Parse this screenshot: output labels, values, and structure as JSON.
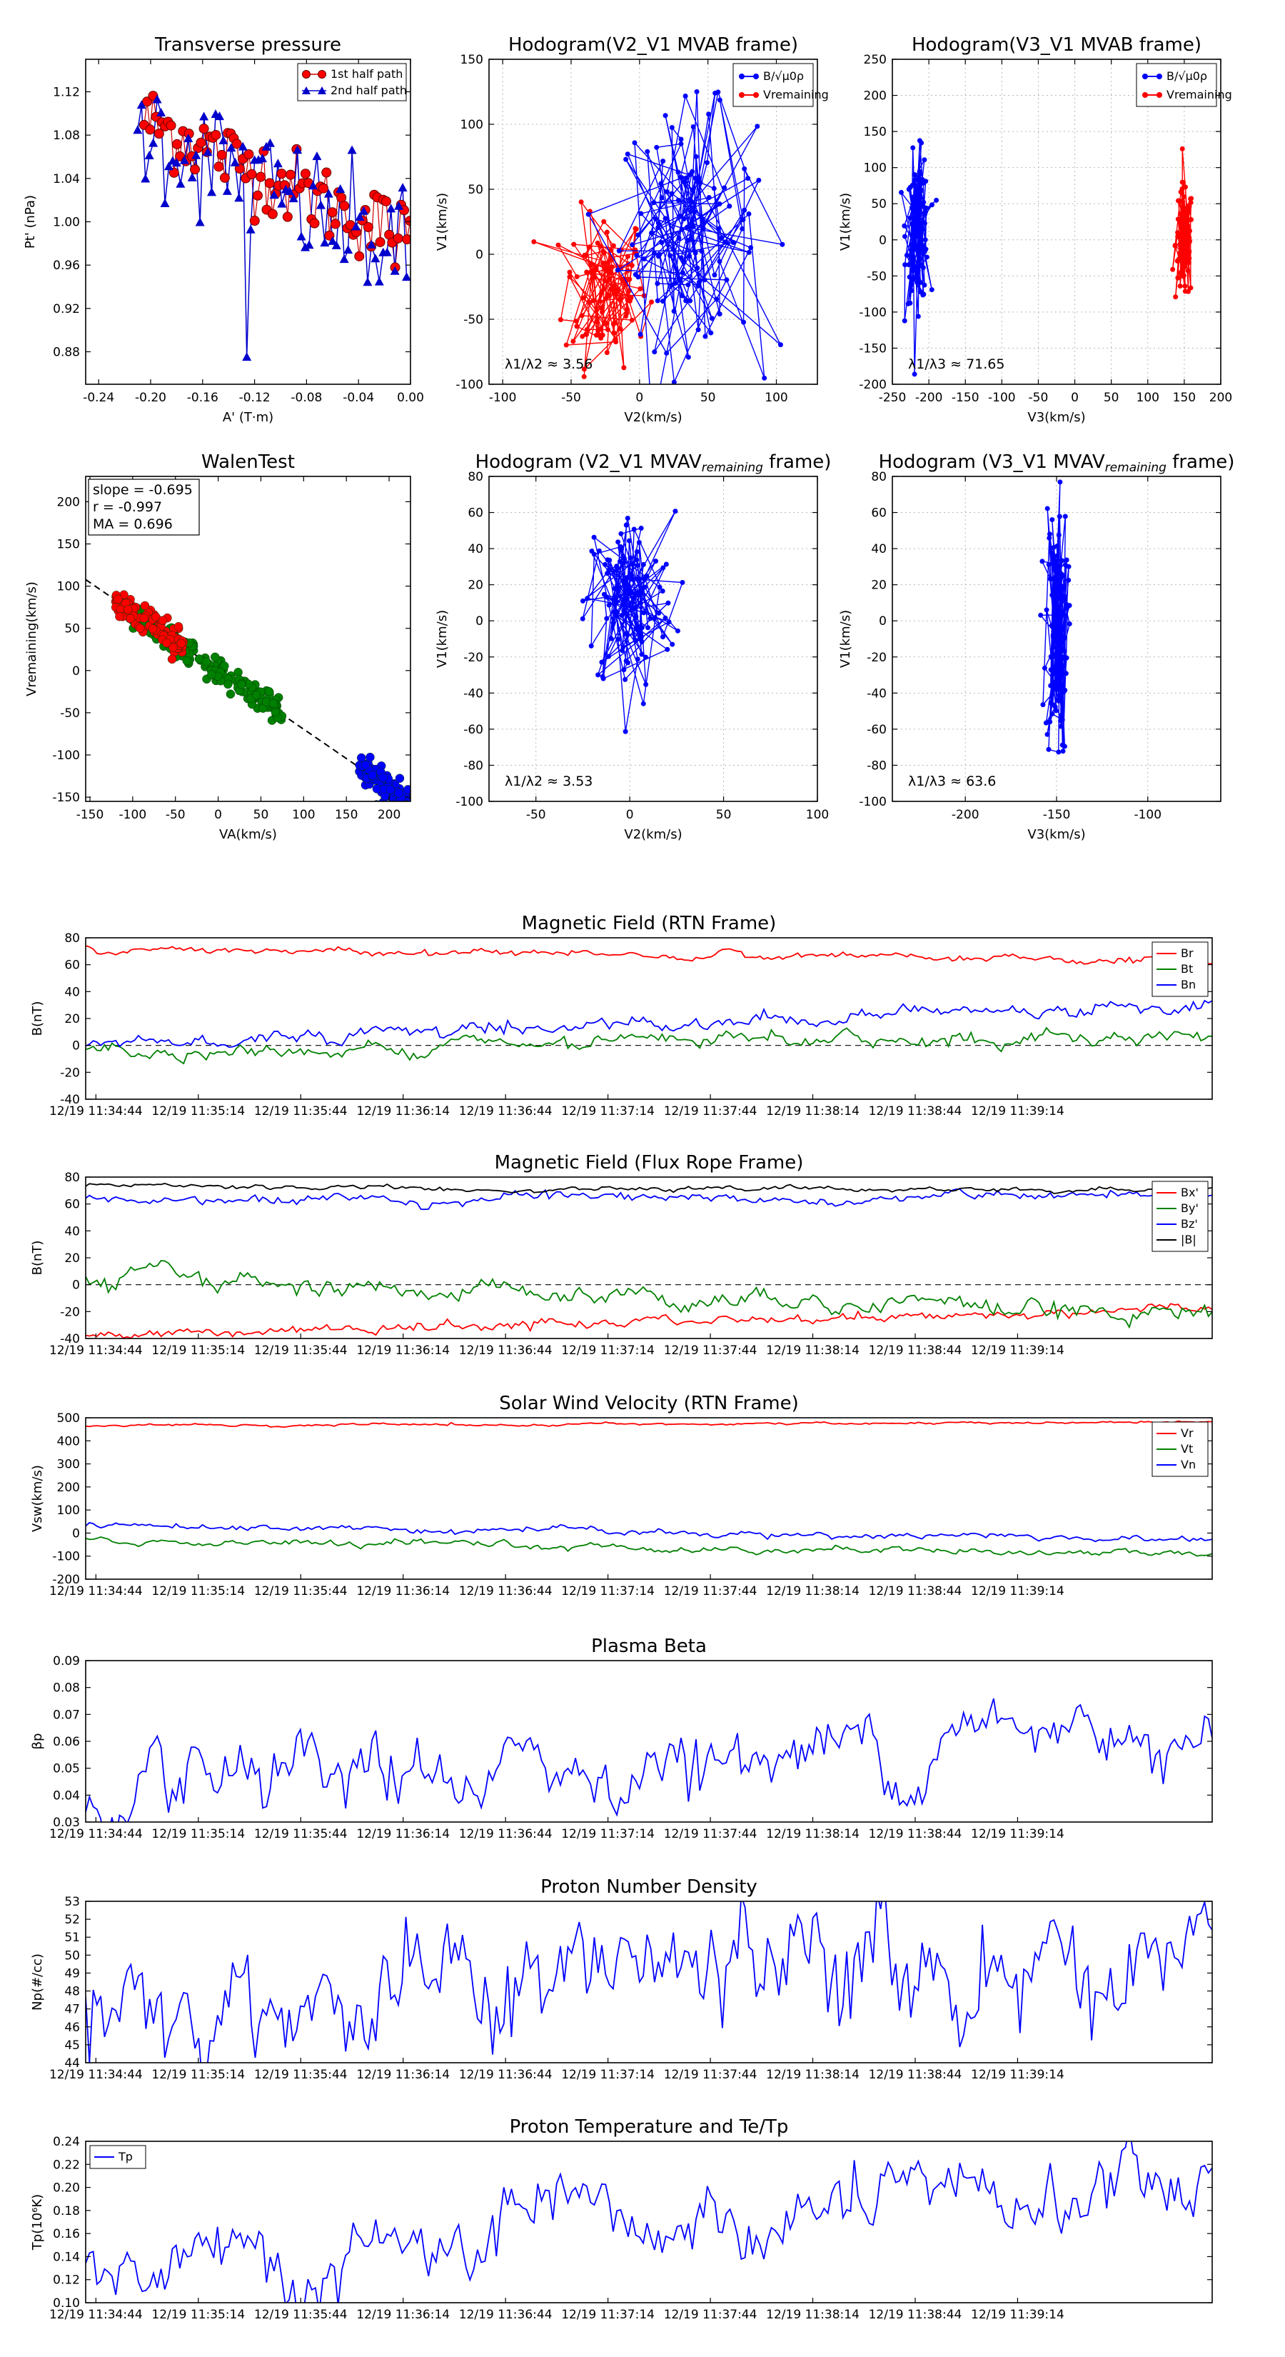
{
  "figure": {
    "subplot_titles": {
      "p1": "Transverse pressure",
      "p2": "Hodogram(V2_V1 MVAB frame)",
      "p3": "Hodogram(V3_V1 MVAB frame)",
      "p4": "WalenTest",
      "p5": "Hodogram (V2_V1 MVAV",
      "p5_sub": "remaining",
      "p5_end": " frame)",
      "p6": "Hodogram (V3_V1 MVAV",
      "p6_sub": "remaining",
      "p6_end": " frame)"
    }
  },
  "chart_data": [
    {
      "id": "p1",
      "type": "scatter",
      "title": "Transverse pressure",
      "xlabel": "A' (T·m)",
      "ylabel": "Pt' (nPa)",
      "xlim": [
        -0.25,
        0.0
      ],
      "ylim": [
        0.85,
        1.15
      ],
      "xticks": [
        -0.24,
        -0.2,
        -0.16,
        -0.12,
        -0.08,
        -0.04,
        0.0
      ],
      "xtick_labels": [
        "-0.24",
        "-0.20",
        "-0.16",
        "-0.12",
        "-0.08",
        "-0.04",
        "0.00"
      ],
      "yticks": [
        0.88,
        0.92,
        0.96,
        1.0,
        1.04,
        1.08,
        1.12
      ],
      "ytick_labels": [
        "0.88",
        "0.92",
        "0.96",
        "1.00",
        "1.04",
        "1.08",
        "1.12"
      ],
      "legend": [
        "1st half path",
        "2nd half path"
      ],
      "series_colors": [
        "#ff0000",
        "#0000cc"
      ]
    },
    {
      "id": "p2",
      "type": "line",
      "title": "Hodogram(V2_V1 MVAB frame)",
      "xlabel": "V2(km/s)",
      "ylabel": "V1(km/s)",
      "xlim": [
        -110,
        130
      ],
      "ylim": [
        -100,
        150
      ],
      "xticks": [
        -100,
        -50,
        0,
        50,
        100
      ],
      "yticks": [
        -100,
        -50,
        0,
        50,
        100,
        150
      ],
      "annotation": "λ1/λ2 ≈ 3.56",
      "legend": [
        "B/√μ0ρ",
        "Vremaining"
      ],
      "series_colors": [
        "#0000ff",
        "#ff0000"
      ],
      "blue": {
        "cx": 35,
        "cy": 20,
        "sx": 25,
        "sy": 45
      },
      "red": {
        "cx": -25,
        "cy": -25,
        "sx": 15,
        "sy": 30
      }
    },
    {
      "id": "p3",
      "type": "line",
      "title": "Hodogram(V3_V1 MVAB frame)",
      "xlabel": "V3(km/s)",
      "ylabel": "V1(km/s)",
      "xlim": [
        -250,
        200
      ],
      "ylim": [
        -200,
        250
      ],
      "xticks": [
        -250,
        -200,
        -150,
        -100,
        -50,
        0,
        50,
        100,
        150,
        200
      ],
      "yticks": [
        -200,
        -150,
        -100,
        -50,
        0,
        50,
        100,
        150,
        200,
        250
      ],
      "annotation": "λ1/λ3 ≈ 71.65",
      "legend": [
        "B/√μ0ρ",
        "Vremaining"
      ],
      "series_colors": [
        "#0000ff",
        "#ff0000"
      ],
      "blue": {
        "cx": -215,
        "cy": 15,
        "sx": 8,
        "sy": 50
      },
      "red": {
        "cx": 150,
        "cy": -5,
        "sx": 6,
        "sy": 40
      }
    },
    {
      "id": "p4",
      "type": "scatter",
      "title": "WalenTest",
      "xlabel": "VA(km/s)",
      "ylabel": "Vremaining(km/s)",
      "xlim": [
        -155,
        225
      ],
      "ylim": [
        -155,
        230
      ],
      "xticks": [
        -150,
        -100,
        -50,
        0,
        50,
        100,
        150,
        200
      ],
      "yticks": [
        -150,
        -100,
        -50,
        0,
        50,
        100,
        150,
        200
      ],
      "slope": -0.695,
      "r": -0.997,
      "MA": 0.696,
      "annotation_lines": [
        "slope = -0.695",
        "r = -0.997",
        "MA = 0.696"
      ]
    },
    {
      "id": "p5",
      "type": "line",
      "title": "Hodogram (V2_V1 MVAVremaining frame)",
      "xlabel": "V2(km/s)",
      "ylabel": "V1(km/s)",
      "xlim": [
        -75,
        100
      ],
      "ylim": [
        -100,
        80
      ],
      "xticks": [
        -50,
        0,
        50,
        100
      ],
      "yticks": [
        -100,
        -80,
        -60,
        -40,
        -20,
        0,
        20,
        40,
        60,
        80
      ],
      "annotation": "λ1/λ2 ≈ 3.53",
      "series_colors": [
        "#0000ff"
      ],
      "blue": {
        "cx": 0,
        "cy": 10,
        "sx": 12,
        "sy": 25
      }
    },
    {
      "id": "p6",
      "type": "line",
      "title": "Hodogram (V3_V1 MVAVremaining frame)",
      "xlabel": "V3(km/s)",
      "ylabel": "V1(km/s)",
      "xlim": [
        -240,
        -60
      ],
      "ylim": [
        -100,
        80
      ],
      "xticks": [
        -200,
        -150,
        -100
      ],
      "yticks": [
        -100,
        -80,
        -60,
        -40,
        -20,
        0,
        20,
        40,
        60,
        80
      ],
      "annotation": "λ1/λ3 ≈ 63.6",
      "series_colors": [
        "#0000ff"
      ],
      "blue": {
        "cx": -150,
        "cy": -5,
        "sx": 3,
        "sy": 35
      }
    },
    {
      "id": "t1",
      "type": "line",
      "title": "Magnetic Field (RTN Frame)",
      "ylabel": "B(nT)",
      "ylim": [
        -40,
        80
      ],
      "yticks": [
        -40,
        -20,
        0,
        20,
        40,
        60,
        80
      ],
      "zero_line": true,
      "legend": [
        "Br",
        "Bt",
        "Bn"
      ],
      "series_colors": [
        "#ff0000",
        "#008000",
        "#0000ff"
      ],
      "series": [
        {
          "name": "Br",
          "start": 72,
          "end": 62,
          "noise": 1.5
        },
        {
          "name": "Bt",
          "start": -5,
          "end": 8,
          "noise": 3
        },
        {
          "name": "Bn",
          "start": 2,
          "end": 32,
          "noise": 3
        }
      ]
    },
    {
      "id": "t2",
      "type": "line",
      "title": "Magnetic Field (Flux Rope Frame)",
      "ylabel": "B(nT)",
      "ylim": [
        -40,
        80
      ],
      "yticks": [
        -40,
        -20,
        0,
        20,
        40,
        60,
        80
      ],
      "zero_line": true,
      "legend": [
        "Bx'",
        "By'",
        "Bz'",
        "|B|"
      ],
      "series_colors": [
        "#ff0000",
        "#008000",
        "#0000ff",
        "#000000"
      ],
      "series": [
        {
          "name": "Bx'",
          "start": -38,
          "end": -18,
          "noise": 2
        },
        {
          "name": "By'",
          "start": 5,
          "end": -20,
          "noise": 4
        },
        {
          "name": "Bz'",
          "start": 63,
          "end": 65,
          "noise": 2
        },
        {
          "name": "|B|",
          "start": 73,
          "end": 70,
          "noise": 1
        }
      ]
    },
    {
      "id": "t3",
      "type": "line",
      "title": "Solar Wind Velocity (RTN Frame)",
      "ylabel": "Vsw(km/s)",
      "ylim": [
        -200,
        500
      ],
      "yticks": [
        -200,
        -100,
        0,
        100,
        200,
        300,
        400,
        500
      ],
      "zero_line": false,
      "legend": [
        "Vr",
        "Vt",
        "Vn"
      ],
      "series_colors": [
        "#ff0000",
        "#008000",
        "#0000ff"
      ],
      "series": [
        {
          "name": "Vr",
          "start": 465,
          "end": 480,
          "noise": 3
        },
        {
          "name": "Vt",
          "start": -35,
          "end": -90,
          "noise": 8
        },
        {
          "name": "Vn",
          "start": 40,
          "end": -30,
          "noise": 8
        }
      ]
    },
    {
      "id": "t4",
      "type": "line",
      "title": "Plasma Beta",
      "ylabel": "βp",
      "ylim": [
        0.03,
        0.09
      ],
      "yticks": [
        0.03,
        0.04,
        0.05,
        0.06,
        0.07,
        0.08,
        0.09
      ],
      "ytick_labels": [
        "0.03",
        "0.04",
        "0.05",
        "0.06",
        "0.07",
        "0.08",
        "0.09"
      ],
      "series_colors": [
        "#0000ff"
      ],
      "series": [
        {
          "name": "beta",
          "start": 0.035,
          "end": 0.068,
          "noise": 0.007
        }
      ]
    },
    {
      "id": "t5",
      "type": "line",
      "title": "Proton Number Density",
      "ylabel": "Np(#/cc)",
      "ylim": [
        44,
        53
      ],
      "yticks": [
        44,
        45,
        46,
        47,
        48,
        49,
        50,
        51,
        52,
        53
      ],
      "series_colors": [
        "#0000ff"
      ],
      "series": [
        {
          "name": "Np",
          "start": 47.5,
          "end": 50,
          "noise": 1.8
        }
      ]
    },
    {
      "id": "t6",
      "type": "line",
      "title": "Proton Temperature and Te/Tp",
      "ylabel": "Tp(10⁶K)",
      "ylim": [
        0.1,
        0.24
      ],
      "yticks": [
        0.1,
        0.12,
        0.14,
        0.16,
        0.18,
        0.2,
        0.22,
        0.24
      ],
      "ytick_labels": [
        "0.10",
        "0.12",
        "0.14",
        "0.16",
        "0.18",
        "0.20",
        "0.22",
        "0.24"
      ],
      "legend": [
        "Tp"
      ],
      "series_colors": [
        "#0000ff"
      ],
      "series": [
        {
          "name": "Tp",
          "start": 0.115,
          "end": 0.205,
          "noise": 0.018
        }
      ]
    }
  ],
  "time_axis": {
    "tick_labels": [
      "12/19 11:34:44",
      "12/19 11:35:14",
      "12/19 11:35:44",
      "12/19 11:36:14",
      "12/19 11:36:44",
      "12/19 11:37:14",
      "12/19 11:37:44",
      "12/19 11:38:14",
      "12/19 11:38:44",
      "12/19 11:39:14"
    ]
  }
}
